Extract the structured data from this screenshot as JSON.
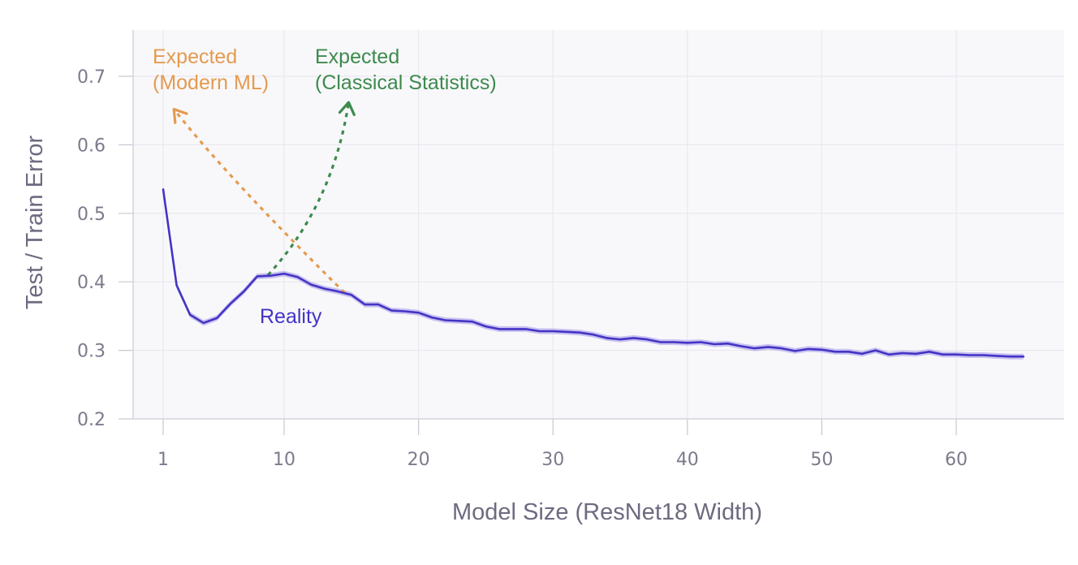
{
  "chart_data": {
    "type": "line",
    "xlabel": "Model Size (ResNet18 Width)",
    "ylabel": "Test / Train Error",
    "xlim": [
      -1,
      68
    ],
    "ylim": [
      0.2,
      0.75
    ],
    "x_ticks": [
      1,
      10,
      20,
      30,
      40,
      50,
      60
    ],
    "y_ticks": [
      0.2,
      0.3,
      0.4,
      0.5,
      0.6,
      0.7
    ],
    "y_tick_labels": [
      "0.2",
      "0.3",
      "0.4",
      "0.5",
      "0.6",
      "0.7"
    ],
    "grid": true,
    "series": [
      {
        "name": "Reality",
        "color": "#4434c4",
        "band_color": "#b9b0ec",
        "points": [
          [
            1,
            0.535
          ],
          [
            2,
            0.395
          ],
          [
            3,
            0.352
          ],
          [
            4,
            0.34
          ],
          [
            5,
            0.347
          ],
          [
            6,
            0.368
          ],
          [
            7,
            0.386
          ],
          [
            8,
            0.408
          ],
          [
            9,
            0.409
          ],
          [
            10,
            0.412
          ],
          [
            11,
            0.407
          ],
          [
            12,
            0.396
          ],
          [
            13,
            0.39
          ],
          [
            14,
            0.386
          ],
          [
            15,
            0.381
          ],
          [
            16,
            0.367
          ],
          [
            17,
            0.367
          ],
          [
            18,
            0.358
          ],
          [
            19,
            0.357
          ],
          [
            20,
            0.355
          ],
          [
            21,
            0.348
          ],
          [
            22,
            0.344
          ],
          [
            23,
            0.343
          ],
          [
            24,
            0.342
          ],
          [
            25,
            0.335
          ],
          [
            26,
            0.331
          ],
          [
            27,
            0.331
          ],
          [
            28,
            0.331
          ],
          [
            29,
            0.328
          ],
          [
            30,
            0.328
          ],
          [
            31,
            0.327
          ],
          [
            32,
            0.326
          ],
          [
            33,
            0.323
          ],
          [
            34,
            0.318
          ],
          [
            35,
            0.316
          ],
          [
            36,
            0.318
          ],
          [
            37,
            0.316
          ],
          [
            38,
            0.312
          ],
          [
            39,
            0.312
          ],
          [
            40,
            0.311
          ],
          [
            41,
            0.312
          ],
          [
            42,
            0.309
          ],
          [
            43,
            0.31
          ],
          [
            44,
            0.306
          ],
          [
            45,
            0.303
          ],
          [
            46,
            0.305
          ],
          [
            47,
            0.303
          ],
          [
            48,
            0.299
          ],
          [
            49,
            0.302
          ],
          [
            50,
            0.301
          ],
          [
            51,
            0.298
          ],
          [
            52,
            0.298
          ],
          [
            53,
            0.295
          ],
          [
            54,
            0.3
          ],
          [
            55,
            0.294
          ],
          [
            56,
            0.296
          ],
          [
            57,
            0.295
          ],
          [
            58,
            0.298
          ],
          [
            59,
            0.294
          ],
          [
            60,
            0.294
          ],
          [
            61,
            0.293
          ],
          [
            62,
            0.293
          ],
          [
            63,
            0.292
          ],
          [
            64,
            0.291
          ],
          [
            65,
            0.291
          ]
        ]
      },
      {
        "name": "Expected (Modern ML)",
        "color": "#e59a4f",
        "style": "dotted-arrow",
        "points": [
          [
            14.5,
            0.384
          ],
          [
            1.8,
            0.652
          ]
        ]
      },
      {
        "name": "Expected (Classical Statistics)",
        "color": "#3d8a4c",
        "style": "dotted-arrow",
        "points": [
          [
            8.8,
            0.41
          ],
          [
            14.8,
            0.662
          ]
        ]
      }
    ],
    "annotations": {
      "modern_line1": "Expected",
      "modern_line2": "(Modern ML)",
      "classical_line1": "Expected",
      "classical_line2": "(Classical Statistics)",
      "reality": "Reality"
    }
  }
}
